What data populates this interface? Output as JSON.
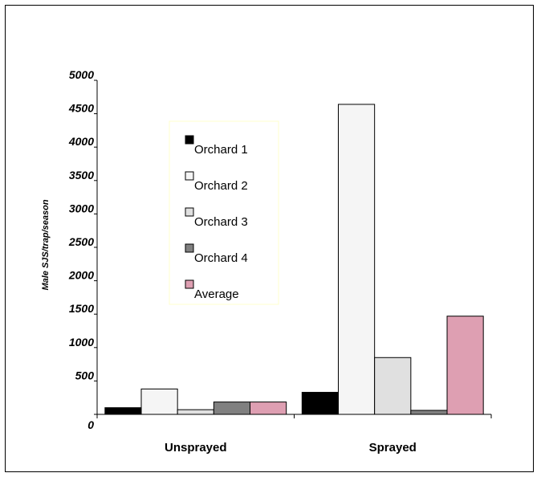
{
  "chart_data": {
    "type": "bar",
    "title": "",
    "xlabel": "",
    "ylabel": "Male SJS/trap/season",
    "categories": [
      "Unsprayed",
      "Sprayed"
    ],
    "series": [
      {
        "name": "Orchard 1",
        "color": "#000000",
        "values": [
          100,
          330
        ]
      },
      {
        "name": "Orchard 2",
        "color": "#f5f5f5",
        "values": [
          380,
          4640
        ]
      },
      {
        "name": "Orchard 3",
        "color": "#e0e0e0",
        "values": [
          70,
          850
        ]
      },
      {
        "name": "Orchard 4",
        "color": "#808080",
        "values": [
          185,
          60
        ]
      },
      {
        "name": "Average",
        "color": "#de9fb2",
        "values": [
          185,
          1470
        ]
      }
    ],
    "ylim": [
      0,
      5000
    ],
    "yticks": [
      "0",
      "500",
      "1000",
      "1500",
      "2000",
      "2500",
      "3000",
      "3500",
      "4000",
      "4500",
      "5000"
    ],
    "legend_position": "upper-left inside plot",
    "grid": false
  }
}
